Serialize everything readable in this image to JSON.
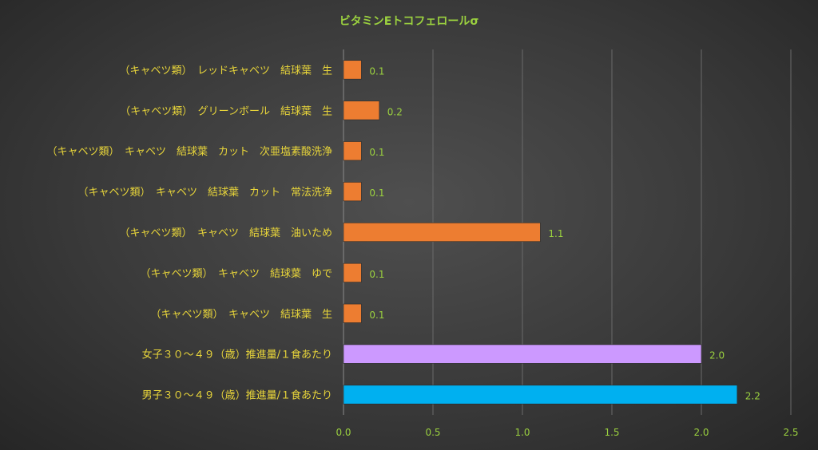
{
  "chart_data": {
    "type": "bar",
    "orientation": "horizontal",
    "title": "ビタミンEトコフェロールσ",
    "categories": [
      "（キャベツ類）　レッドキャベツ　結球葉　生",
      "（キャベツ類）　グリーンボール　結球葉　生",
      "（キャベツ類）　キャベツ　結球葉　カット　次亜塩素酸洗浄",
      "（キャベツ類）　キャベツ　結球葉　カット　常法洗浄",
      "（キャベツ類）　キャベツ　結球葉　油いため",
      "（キャベツ類）　キャベツ　結球葉　ゆで",
      "（キャベツ類）　キャベツ　結球葉　生",
      "女子３０～４９（歳）推進量/１食あたり",
      "男子３０～４９（歳）推進量/１食あたり"
    ],
    "values": [
      0.1,
      0.2,
      0.1,
      0.1,
      1.1,
      0.1,
      0.1,
      2.0,
      2.2
    ],
    "value_labels": [
      "0.1",
      "0.2",
      "0.1",
      "0.1",
      "1.1",
      "0.1",
      "0.1",
      "2.0",
      "2.2"
    ],
    "colors": [
      "#ed7d31",
      "#ed7d31",
      "#ed7d31",
      "#ed7d31",
      "#ed7d31",
      "#ed7d31",
      "#ed7d31",
      "#cc99ff",
      "#00b0f0"
    ],
    "xlim": [
      0,
      2.5
    ],
    "xticks": [
      "0.0",
      "0.5",
      "1.0",
      "1.5",
      "2.0",
      "2.5"
    ],
    "grid": "vertical",
    "legend": "none"
  }
}
